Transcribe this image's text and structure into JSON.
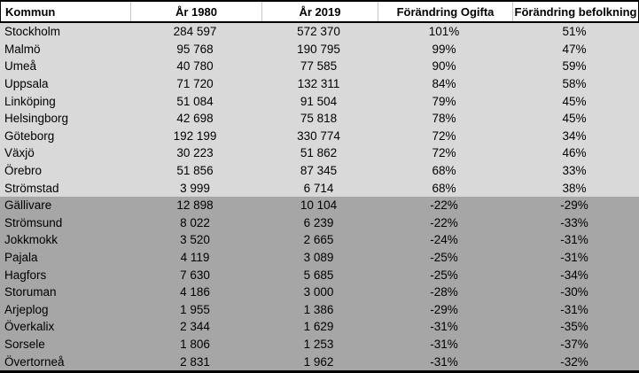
{
  "table": {
    "columns": [
      "Kommun",
      "År 1980",
      "År 2019",
      "Förändring Ogifta",
      "Förändring befolkning"
    ],
    "light_row_count": 10,
    "rows": [
      [
        "Stockholm",
        "284 597",
        "572 370",
        "101%",
        "51%"
      ],
      [
        "Malmö",
        "95 768",
        "190 795",
        "99%",
        "47%"
      ],
      [
        "Umeå",
        "40 780",
        "77 585",
        "90%",
        "59%"
      ],
      [
        "Uppsala",
        "71 720",
        "132 311",
        "84%",
        "58%"
      ],
      [
        "Linköping",
        "51 084",
        "91 504",
        "79%",
        "45%"
      ],
      [
        "Helsingborg",
        "42 698",
        "75 818",
        "78%",
        "45%"
      ],
      [
        "Göteborg",
        "192 199",
        "330 774",
        "72%",
        "34%"
      ],
      [
        "Växjö",
        "30 223",
        "51 862",
        "72%",
        "46%"
      ],
      [
        "Örebro",
        "51 856",
        "87 345",
        "68%",
        "33%"
      ],
      [
        "Strömstad",
        "3 999",
        "6 714",
        "68%",
        "38%"
      ],
      [
        "Gällivare",
        "12 898",
        "10 104",
        "-22%",
        "-29%"
      ],
      [
        "Strömsund",
        "8 022",
        "6 239",
        "-22%",
        "-33%"
      ],
      [
        "Jokkmokk",
        "3 520",
        "2 665",
        "-24%",
        "-31%"
      ],
      [
        "Pajala",
        "4 119",
        "3 089",
        "-25%",
        "-31%"
      ],
      [
        "Hagfors",
        "7 630",
        "5 685",
        "-25%",
        "-34%"
      ],
      [
        "Storuman",
        "4 186",
        "3 000",
        "-28%",
        "-30%"
      ],
      [
        "Arjeplog",
        "1 955",
        "1 386",
        "-29%",
        "-31%"
      ],
      [
        "Överkalix",
        "2 344",
        "1 629",
        "-31%",
        "-35%"
      ],
      [
        "Sorsele",
        "1 806",
        "1 253",
        "-31%",
        "-37%"
      ],
      [
        "Övertorneå",
        "2 831",
        "1 962",
        "-31%",
        "-32%"
      ]
    ]
  },
  "colors": {
    "header_bg": "#ffffff",
    "row_group_light": "#d9d9d9",
    "row_group_dark": "#a6a6a6",
    "border": "#000000",
    "header_divider": "#c8c8c8",
    "text": "#000000"
  }
}
